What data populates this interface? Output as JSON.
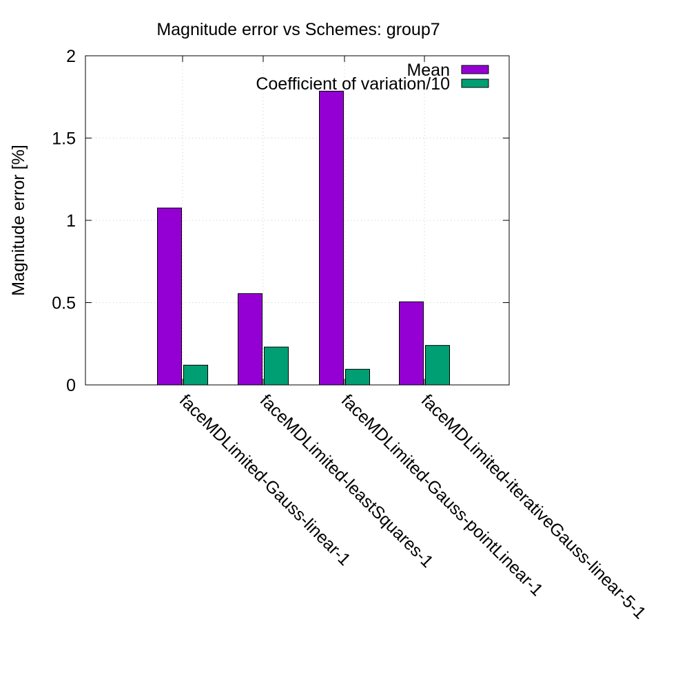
{
  "chart_data": {
    "type": "bar",
    "title": "Magnitude error vs Schemes: group7",
    "xlabel": "",
    "ylabel": "Magnitude error [%]",
    "ylim": [
      0,
      2
    ],
    "yticks": [
      0,
      0.5,
      1,
      1.5,
      2
    ],
    "ytick_labels": [
      "0",
      "0.5",
      "1",
      "1.5",
      "2"
    ],
    "grid": true,
    "legend_position": "top-right",
    "categories": [
      "faceMDLimited-Gauss-linear-1",
      "faceMDLimited-leastSquares-1",
      "faceMDLimited-Gauss-pointLinear-1",
      "faceMDLimited-iterativeGauss-linear-5-1"
    ],
    "series": [
      {
        "name": "Mean",
        "color": "#9400d3",
        "values": [
          1.075,
          0.555,
          1.785,
          0.505
        ]
      },
      {
        "name": "Coefficient of variation/10",
        "color": "#009e73",
        "values": [
          0.12,
          0.23,
          0.095,
          0.24
        ]
      }
    ]
  }
}
